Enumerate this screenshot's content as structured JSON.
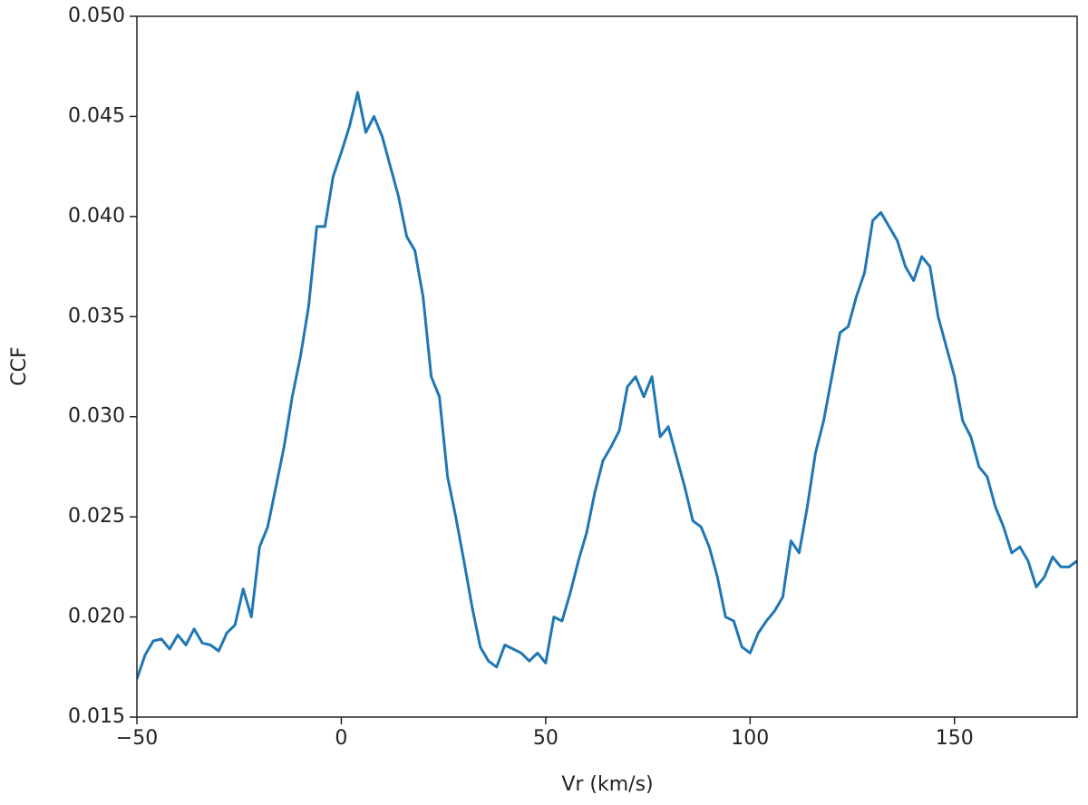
{
  "chart_data": {
    "type": "line",
    "xlabel": "Vr (km/s)",
    "ylabel": "CCF",
    "xlim": [
      -50,
      180
    ],
    "ylim": [
      0.015,
      0.05
    ],
    "xticks": [
      {
        "value": -50,
        "label": "−50"
      },
      0,
      50,
      100,
      150
    ],
    "yticks": [
      0.015,
      {
        "value": 0.02,
        "label": "0.020"
      },
      0.025,
      {
        "value": 0.03,
        "label": "0.030"
      },
      0.035,
      {
        "value": 0.04,
        "label": "0.040"
      },
      0.045,
      {
        "value": 0.05,
        "label": "0.050"
      }
    ],
    "grid": false,
    "x": [
      -50,
      -48,
      -46,
      -44,
      -42,
      -40,
      -38,
      -36,
      -34,
      -32,
      -30,
      -28,
      -26,
      -24,
      -22,
      -20,
      -18,
      -16,
      -14,
      -12,
      -10,
      -8,
      -6,
      -4,
      -2,
      0,
      2,
      4,
      6,
      8,
      10,
      12,
      14,
      16,
      18,
      20,
      22,
      24,
      26,
      28,
      30,
      32,
      34,
      36,
      38,
      40,
      42,
      44,
      46,
      48,
      50,
      52,
      54,
      56,
      58,
      60,
      62,
      64,
      66,
      68,
      70,
      72,
      74,
      76,
      78,
      80,
      82,
      84,
      86,
      88,
      90,
      92,
      94,
      96,
      98,
      100,
      102,
      104,
      106,
      108,
      110,
      112,
      114,
      116,
      118,
      120,
      122,
      124,
      126,
      128,
      130,
      132,
      134,
      136,
      138,
      140,
      142,
      144,
      146,
      148,
      150,
      152,
      154,
      156,
      158,
      160,
      162,
      164,
      166,
      168,
      170,
      172,
      174,
      176,
      178,
      180
    ],
    "series": [
      {
        "name": "CCF",
        "color": "#1f77b4",
        "values": [
          0.0169,
          0.0181,
          0.0188,
          0.0189,
          0.0184,
          0.0191,
          0.0186,
          0.0194,
          0.0187,
          0.0186,
          0.0183,
          0.0192,
          0.0196,
          0.0214,
          0.02,
          0.0235,
          0.0245,
          0.0265,
          0.0285,
          0.031,
          0.033,
          0.0355,
          0.0395,
          0.0395,
          0.042,
          0.0432,
          0.0445,
          0.0462,
          0.0442,
          0.045,
          0.044,
          0.0425,
          0.041,
          0.039,
          0.0383,
          0.036,
          0.032,
          0.031,
          0.027,
          0.025,
          0.0228,
          0.0205,
          0.0185,
          0.0178,
          0.0175,
          0.0186,
          0.0184,
          0.0182,
          0.0178,
          0.0182,
          0.0177,
          0.02,
          0.0198,
          0.0212,
          0.0228,
          0.0242,
          0.0262,
          0.0278,
          0.0285,
          0.0293,
          0.0315,
          0.032,
          0.031,
          0.032,
          0.029,
          0.0295,
          0.028,
          0.0265,
          0.0248,
          0.0245,
          0.0235,
          0.022,
          0.02,
          0.0198,
          0.0185,
          0.0182,
          0.0192,
          0.0198,
          0.0203,
          0.021,
          0.0238,
          0.0232,
          0.0255,
          0.0282,
          0.0298,
          0.032,
          0.0342,
          0.0345,
          0.036,
          0.0372,
          0.0398,
          0.0402,
          0.0395,
          0.0388,
          0.0375,
          0.0368,
          0.038,
          0.0375,
          0.035,
          0.0335,
          0.032,
          0.0298,
          0.029,
          0.0275,
          0.027,
          0.0255,
          0.0245,
          0.0232,
          0.0235,
          0.0228,
          0.0215,
          0.022,
          0.023,
          0.0225,
          0.0225,
          0.0228
        ]
      }
    ]
  }
}
